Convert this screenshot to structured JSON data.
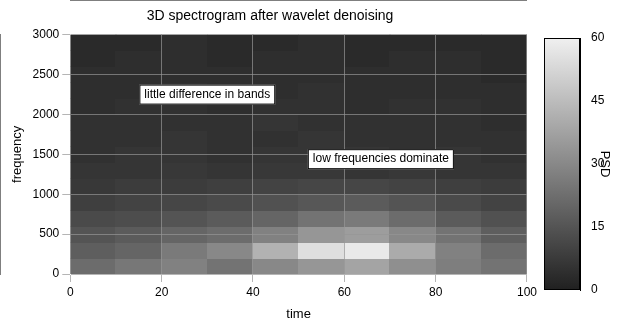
{
  "chart_data": {
    "type": "heatmap",
    "title": "3D spectrogram after wavelet denoising",
    "x_label": "time",
    "y_label": "frequency",
    "xlim": [
      0,
      100
    ],
    "xticks": [
      0,
      20,
      40,
      60,
      80,
      100
    ],
    "ylim": [
      0,
      3000
    ],
    "yticks": [
      0,
      500,
      1000,
      1500,
      2000,
      2500,
      3000
    ],
    "x": [
      5,
      15,
      25,
      35,
      45,
      55,
      65,
      75,
      85,
      95
    ],
    "y": [
      100,
      300,
      500,
      700,
      900,
      1100,
      1300,
      1500,
      1700,
      1900,
      2100,
      2300,
      2500,
      2700,
      2900
    ],
    "cells": [
      [
        22,
        25,
        28,
        24,
        30,
        34,
        38,
        32,
        27,
        24
      ],
      [
        18,
        20,
        26,
        30,
        42,
        55,
        58,
        40,
        28,
        22
      ],
      [
        15,
        17,
        20,
        22,
        28,
        34,
        36,
        30,
        24,
        18
      ],
      [
        12,
        13,
        15,
        17,
        20,
        24,
        26,
        22,
        17,
        14
      ],
      [
        9,
        10,
        11,
        12,
        14,
        16,
        17,
        15,
        12,
        10
      ],
      [
        7,
        8,
        8,
        9,
        10,
        11,
        11,
        10,
        9,
        8
      ],
      [
        6,
        6,
        7,
        6,
        7,
        7,
        6,
        7,
        6,
        6
      ],
      [
        5,
        6,
        6,
        5,
        6,
        6,
        6,
        5,
        6,
        5
      ],
      [
        5,
        5,
        6,
        5,
        5,
        6,
        5,
        5,
        5,
        5
      ],
      [
        5,
        5,
        5,
        5,
        6,
        5,
        5,
        5,
        5,
        4
      ],
      [
        4,
        5,
        5,
        4,
        5,
        5,
        4,
        5,
        5,
        4
      ],
      [
        4,
        4,
        5,
        4,
        4,
        5,
        4,
        4,
        4,
        4
      ],
      [
        4,
        4,
        4,
        4,
        4,
        4,
        4,
        4,
        4,
        3
      ],
      [
        3,
        4,
        4,
        3,
        4,
        4,
        3,
        4,
        4,
        3
      ],
      [
        3,
        3,
        4,
        3,
        3,
        4,
        3,
        3,
        3,
        3
      ]
    ],
    "colorbar": {
      "label": "PSD",
      "range": [
        0,
        60
      ],
      "ticks": [
        0,
        15,
        30,
        45,
        60
      ]
    },
    "annotations": [
      "little difference in bands",
      "low frequencies dominate"
    ],
    "grid": true
  }
}
